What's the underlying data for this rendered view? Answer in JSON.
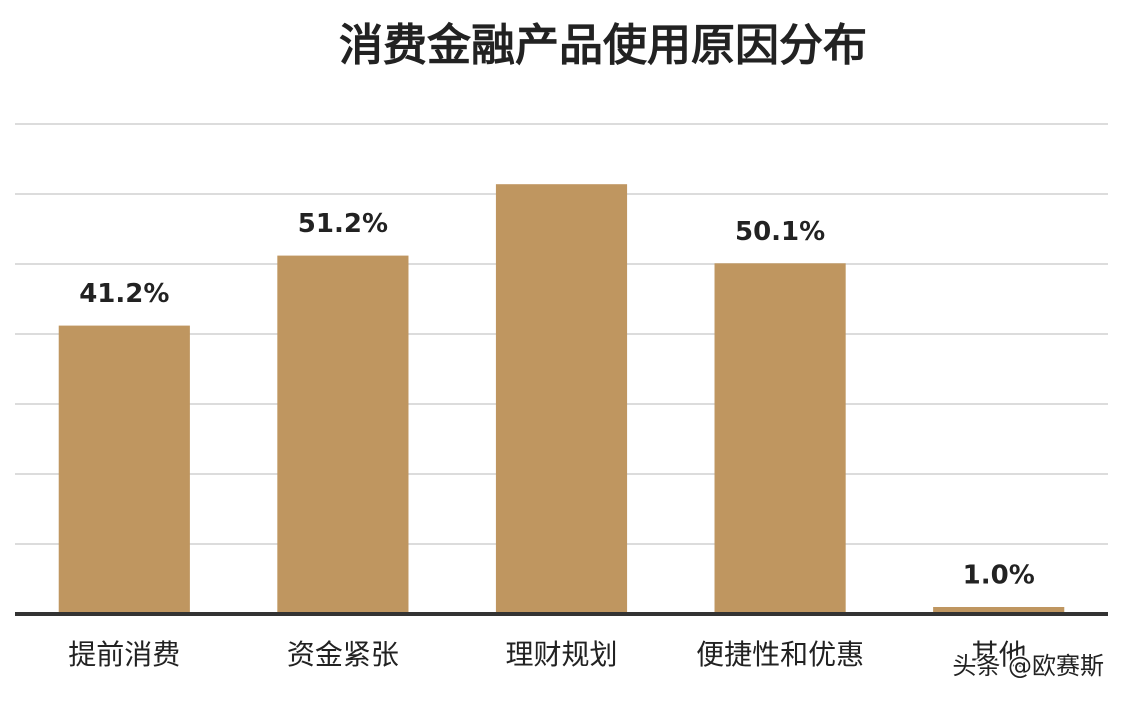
{
  "chart_data": {
    "type": "bar",
    "title": "消费金融产品使用原因分布",
    "categories": [
      "提前消费",
      "资金紧张",
      "理财规划",
      "便捷性和优惠",
      "其他"
    ],
    "values": [
      41.2,
      51.2,
      61.4,
      50.1,
      1.0
    ],
    "value_labels": [
      "41.2%",
      "51.2%",
      null,
      "50.1%",
      "1.0%"
    ],
    "color": "#bf9660",
    "ylim": [
      0,
      70
    ],
    "yticks": [
      0,
      10,
      20,
      30,
      40,
      50,
      60,
      70
    ],
    "tick_labels": false,
    "grid": true,
    "watermark": "头条 @欧赛斯"
  }
}
